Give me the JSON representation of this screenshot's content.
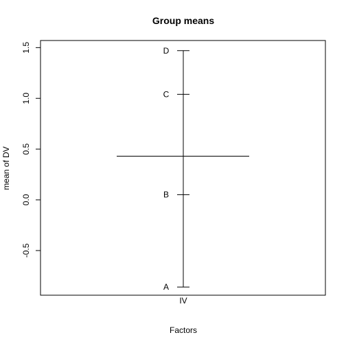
{
  "chart_data": {
    "type": "factor-means",
    "title": "Group means",
    "xlabel": "Factors",
    "ylabel": "mean of DV",
    "factor": "IV",
    "grand_mean": 0.43,
    "groups": [
      {
        "label": "A",
        "value": -0.86
      },
      {
        "label": "B",
        "value": 0.05
      },
      {
        "label": "C",
        "value": 1.04
      },
      {
        "label": "D",
        "value": 1.47
      }
    ],
    "ylim": [
      -0.94,
      1.57
    ],
    "yticks": [
      -0.5,
      0.0,
      0.5,
      1.0,
      1.5
    ],
    "ytick_labels": [
      "-0.5",
      "0.0",
      "0.5",
      "1.0",
      "1.5"
    ]
  }
}
